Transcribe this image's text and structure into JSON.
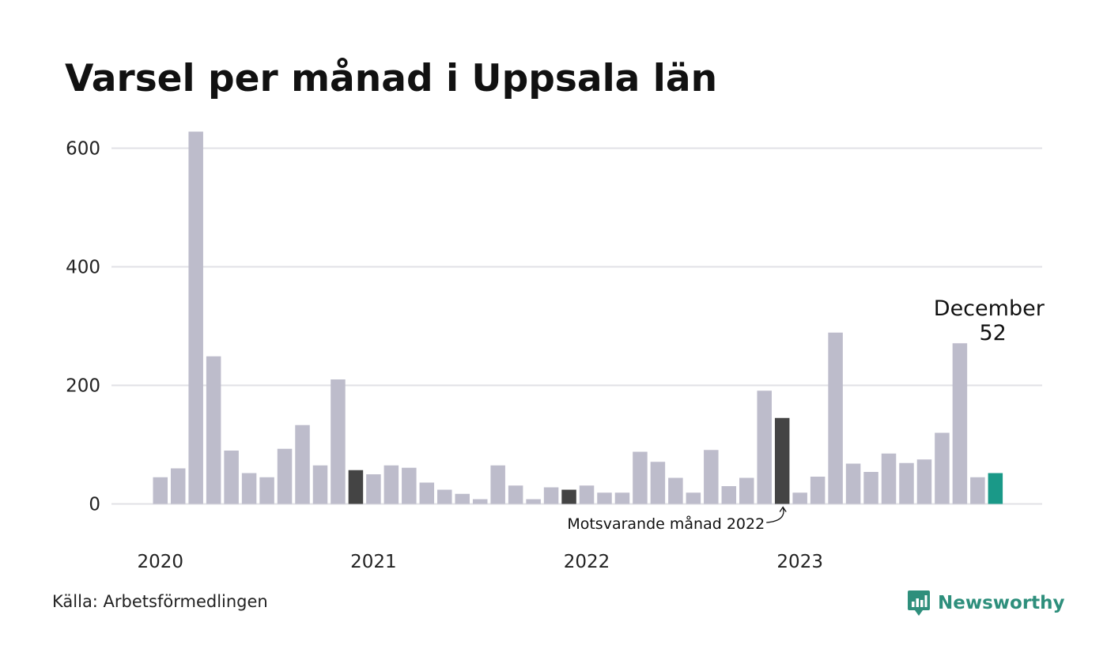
{
  "title": "Varsel per månad i Uppsala län",
  "source": "Källa: Arbetsförmedlingen",
  "brand": {
    "name": "Newsworthy",
    "icon": "newsworthy-logo-icon",
    "color": "#2e8f7c"
  },
  "chart_data": {
    "type": "bar",
    "title": "Varsel per månad i Uppsala län",
    "xlabel": "",
    "ylabel": "",
    "ylim": [
      0,
      600
    ],
    "yticks": [
      0,
      200,
      400,
      600
    ],
    "grid": true,
    "legend": "none",
    "x_tick_labels": [
      {
        "label": "2020",
        "index": 0
      },
      {
        "label": "2021",
        "index": 12
      },
      {
        "label": "2022",
        "index": 24
      },
      {
        "label": "2023",
        "index": 36
      }
    ],
    "values": [
      45,
      60,
      628,
      249,
      90,
      52,
      45,
      93,
      133,
      65,
      210,
      57,
      50,
      65,
      61,
      36,
      24,
      17,
      8,
      65,
      31,
      8,
      28,
      24,
      31,
      19,
      19,
      88,
      71,
      44,
      19,
      91,
      30,
      44,
      191,
      145,
      19,
      46,
      289,
      68,
      54,
      85,
      69,
      75,
      120,
      271,
      45,
      52
    ],
    "highlights": {
      "reference_indices": [
        11,
        23,
        35
      ],
      "current_index": 47
    },
    "colors": {
      "default": "#bdbccb",
      "reference": "#444444",
      "current": "#1a9988",
      "grid": "#e1e1e6"
    },
    "annotations": {
      "previous_year_label": "Motsvarande månad 2022",
      "current_month": "December",
      "current_value": "52"
    }
  }
}
